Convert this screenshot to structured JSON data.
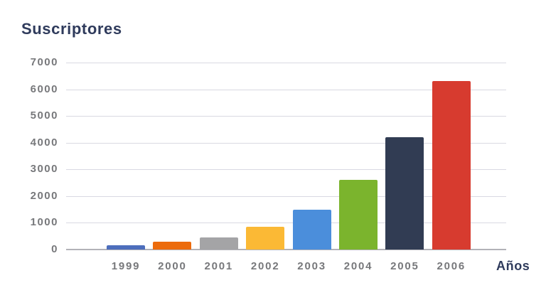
{
  "chart_data": {
    "type": "bar",
    "title": "Suscriptores",
    "xlabel": "Años",
    "ylabel": "",
    "categories": [
      "1999",
      "2000",
      "2001",
      "2002",
      "2003",
      "2004",
      "2005",
      "2006"
    ],
    "values": [
      150,
      300,
      450,
      850,
      1500,
      2600,
      4200,
      6300
    ],
    "bar_colors": [
      "#4d6ebc",
      "#ec6b0c",
      "#a4a4a6",
      "#fbb935",
      "#4b8edb",
      "#7bb42d",
      "#313c53",
      "#d73b2f"
    ],
    "ylim": [
      0,
      7000
    ],
    "yticks": [
      7000,
      6000,
      5000,
      4000,
      3000,
      2000,
      1000,
      0
    ],
    "grid": true,
    "legend": false
  },
  "colors": {
    "title_text": "#2f3b5c",
    "tick_label": "#77787b",
    "gridline": "#d9d9e2",
    "axis_line": "#b2b2b8",
    "background": "#ffffff"
  }
}
